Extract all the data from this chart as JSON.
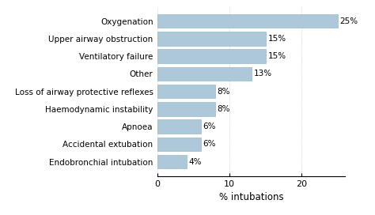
{
  "categories": [
    "Endobronchial intubation",
    "Accidental extubation",
    "Apnoea",
    "Haemodynamic instability",
    "Loss of airway protective reflexes",
    "Other",
    "Ventilatory failure",
    "Upper airway obstruction",
    "Oxygenation"
  ],
  "values": [
    4,
    6,
    6,
    8,
    8,
    13,
    15,
    15,
    25
  ],
  "bar_color": "#adc9d9",
  "bar_edgecolor": "#8ab0c0",
  "xlabel": "% intubations",
  "xlim": [
    0,
    26
  ],
  "xticks": [
    0,
    10,
    20
  ],
  "label_fontsize": 7.5,
  "tick_fontsize": 8.0,
  "xlabel_fontsize": 8.5,
  "bar_height": 0.78,
  "value_label_fontsize": 7.5,
  "background_color": "#ffffff"
}
